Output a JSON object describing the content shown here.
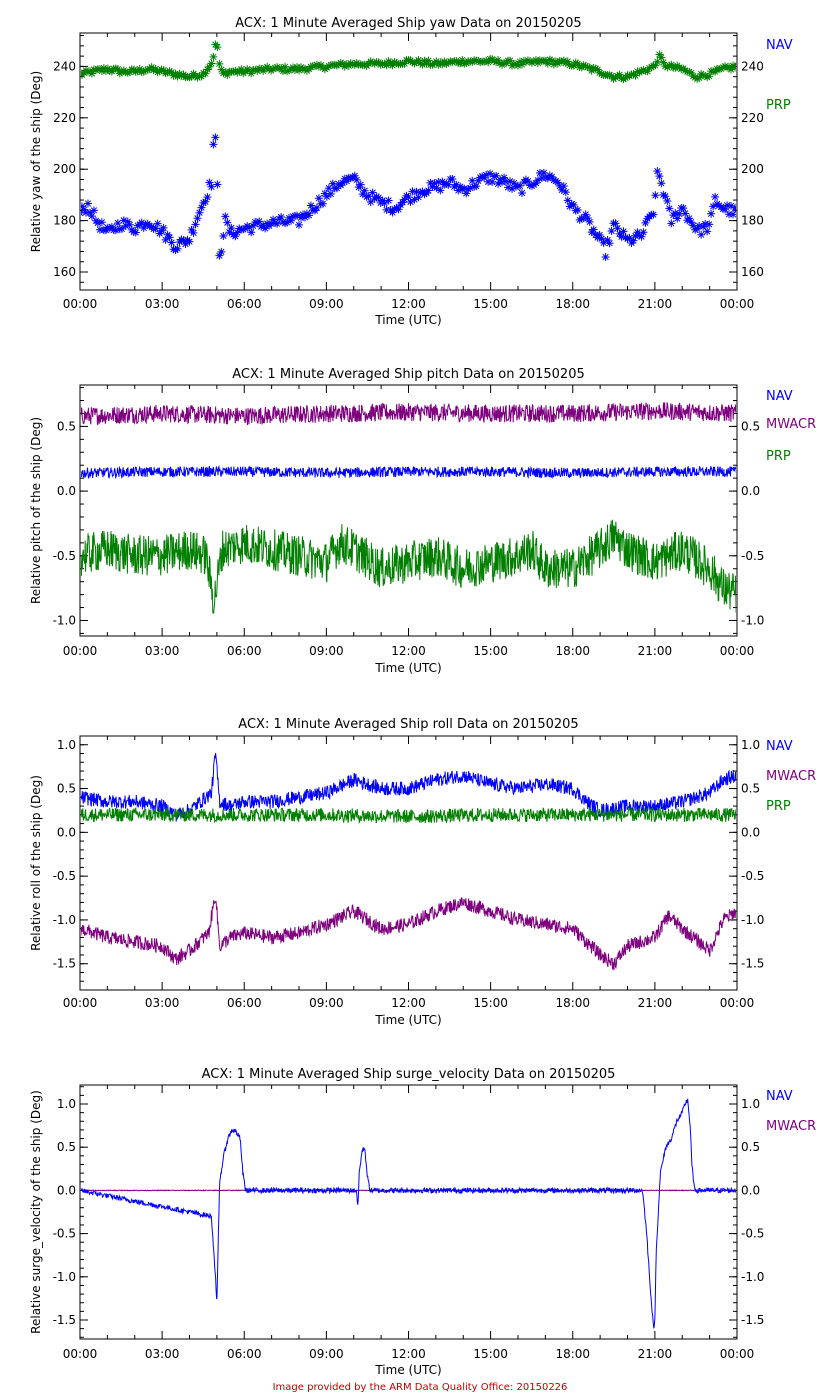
{
  "footer": "Image provided by the ARM Data Quality Office: 20150226",
  "colors": {
    "NAV": "#0000ff",
    "MWACR": "#7f007f",
    "PRP": "#007f00",
    "axis": "#000000"
  },
  "chart_data": [
    {
      "type": "scatter",
      "title": "ACX: 1 Minute Averaged Ship yaw Data on 20150205",
      "xlabel": "Time (UTC)",
      "ylabel": "Relative yaw of the ship (Deg)",
      "xlim": [
        0,
        24
      ],
      "xticks": [
        "00:00",
        "03:00",
        "06:00",
        "09:00",
        "12:00",
        "15:00",
        "18:00",
        "21:00",
        "00:00"
      ],
      "ylim": [
        153,
        253
      ],
      "yticks": [
        160,
        180,
        200,
        220,
        240
      ],
      "legend": [
        "NAV",
        "PRP"
      ],
      "series": [
        {
          "name": "PRP",
          "marker": "asterisk",
          "x": [
            0,
            0.5,
            1,
            1.5,
            2,
            2.5,
            3,
            3.5,
            4,
            4.5,
            4.85,
            4.9,
            5,
            5.05,
            5.1,
            5.2,
            5.5,
            6,
            7,
            8,
            9,
            10,
            11,
            12,
            13,
            14,
            15,
            16,
            17,
            18,
            19,
            19.5,
            20,
            21,
            21.1,
            21.2,
            21.3,
            21.5,
            22,
            22.5,
            23,
            23.5,
            24
          ],
          "y": [
            237,
            238,
            239,
            238,
            238,
            239,
            238,
            237,
            236,
            237,
            242,
            247,
            249,
            245,
            240,
            237,
            238,
            238,
            239,
            239,
            240,
            241,
            241,
            242,
            241,
            242,
            242,
            241,
            242,
            241,
            238,
            236,
            236,
            240,
            243,
            244,
            241,
            240,
            239,
            236,
            237,
            239,
            240
          ]
        },
        {
          "name": "NAV",
          "marker": "asterisk",
          "x": [
            0,
            0.3,
            0.6,
            1,
            1.5,
            2,
            2.5,
            3,
            3.5,
            4,
            4.3,
            4.5,
            4.8,
            4.9,
            4.95,
            5,
            5.05,
            5.1,
            5.3,
            5.5,
            6,
            7,
            8,
            8.5,
            9,
            9.5,
            10,
            10.5,
            11,
            11.5,
            12,
            12.5,
            13,
            13.5,
            14,
            14.5,
            15,
            15.5,
            16,
            16.5,
            17,
            17.5,
            18,
            18.5,
            19,
            19.2,
            19.5,
            20,
            20.5,
            21,
            21.1,
            21.3,
            21.6,
            22,
            22.3,
            22.6,
            23,
            23.2,
            23.5,
            24
          ],
          "y": [
            183,
            186,
            180,
            175,
            179,
            177,
            180,
            176,
            170,
            173,
            182,
            187,
            195,
            215,
            210,
            200,
            180,
            165,
            180,
            175,
            177,
            179,
            180,
            185,
            190,
            195,
            196,
            190,
            187,
            185,
            189,
            192,
            193,
            195,
            192,
            195,
            197,
            195,
            192,
            195,
            198,
            195,
            185,
            180,
            172,
            168,
            178,
            172,
            174,
            185,
            200,
            192,
            180,
            185,
            180,
            176,
            178,
            188,
            185,
            183
          ]
        }
      ]
    },
    {
      "type": "line",
      "title": "ACX: 1 Minute Averaged Ship pitch Data on 20150205",
      "xlabel": "Time (UTC)",
      "ylabel": "Relative pitch of the ship (Deg)",
      "xlim": [
        0,
        24
      ],
      "xticks": [
        "00:00",
        "03:00",
        "06:00",
        "09:00",
        "12:00",
        "15:00",
        "18:00",
        "21:00",
        "00:00"
      ],
      "ylim": [
        -1.12,
        0.82
      ],
      "yticks": [
        -1.0,
        -0.5,
        0.0,
        0.5
      ],
      "legend": [
        "NAV",
        "MWACR",
        "PRP"
      ],
      "series": [
        {
          "name": "MWACR",
          "x": [
            0,
            3,
            6,
            9,
            12,
            15,
            18,
            21,
            24
          ],
          "y": [
            0.58,
            0.6,
            0.58,
            0.6,
            0.61,
            0.6,
            0.6,
            0.62,
            0.6
          ],
          "noise": 0.07
        },
        {
          "name": "NAV",
          "x": [
            0,
            3,
            6,
            9,
            12,
            15,
            18,
            21,
            24
          ],
          "y": [
            0.14,
            0.15,
            0.15,
            0.14,
            0.15,
            0.15,
            0.14,
            0.15,
            0.15
          ],
          "noise": 0.04
        },
        {
          "name": "PRP",
          "x": [
            0,
            1,
            2,
            3,
            4,
            4.6,
            4.9,
            5.2,
            6,
            7,
            8,
            9,
            9.5,
            10,
            11,
            12,
            13,
            14,
            15,
            16,
            16.5,
            17,
            18,
            19,
            19.5,
            20,
            21,
            22,
            23,
            23.5,
            24
          ],
          "y": [
            -0.5,
            -0.45,
            -0.5,
            -0.5,
            -0.45,
            -0.5,
            -0.85,
            -0.45,
            -0.4,
            -0.45,
            -0.5,
            -0.55,
            -0.4,
            -0.45,
            -0.6,
            -0.55,
            -0.5,
            -0.6,
            -0.55,
            -0.5,
            -0.45,
            -0.6,
            -0.6,
            -0.45,
            -0.35,
            -0.45,
            -0.55,
            -0.45,
            -0.6,
            -0.75,
            -0.8
          ],
          "noise": 0.16
        }
      ]
    },
    {
      "type": "line",
      "title": "ACX: 1 Minute Averaged Ship roll Data on 20150205",
      "xlabel": "Time (UTC)",
      "ylabel": "Relative roll of the ship (Deg)",
      "xlim": [
        0,
        24
      ],
      "xticks": [
        "00:00",
        "03:00",
        "06:00",
        "09:00",
        "12:00",
        "15:00",
        "18:00",
        "21:00",
        "00:00"
      ],
      "ylim": [
        -1.8,
        1.1
      ],
      "yticks": [
        -1.5,
        -1.0,
        -0.5,
        0.0,
        0.5,
        1.0
      ],
      "legend": [
        "NAV",
        "MWACR",
        "PRP"
      ],
      "series": [
        {
          "name": "NAV",
          "x": [
            0,
            1,
            2,
            3,
            3.5,
            4,
            4.8,
            4.95,
            5.1,
            5.5,
            6,
            7,
            8,
            9,
            10,
            10.5,
            11,
            12,
            13,
            14,
            15,
            16,
            17,
            18,
            18.5,
            19,
            20,
            21,
            22,
            23,
            23.5,
            24
          ],
          "y": [
            0.4,
            0.35,
            0.35,
            0.3,
            0.2,
            0.25,
            0.45,
            0.9,
            0.35,
            0.3,
            0.35,
            0.35,
            0.4,
            0.45,
            0.6,
            0.55,
            0.5,
            0.5,
            0.6,
            0.65,
            0.55,
            0.5,
            0.55,
            0.5,
            0.35,
            0.25,
            0.3,
            0.3,
            0.35,
            0.45,
            0.6,
            0.65
          ],
          "noise": 0.08
        },
        {
          "name": "PRP",
          "x": [
            0,
            3,
            6,
            9,
            12,
            15,
            18,
            21,
            24
          ],
          "y": [
            0.2,
            0.2,
            0.2,
            0.2,
            0.18,
            0.2,
            0.2,
            0.2,
            0.2
          ],
          "noise": 0.08
        },
        {
          "name": "MWACR",
          "x": [
            0,
            1,
            2,
            3,
            3.5,
            4,
            4.7,
            4.95,
            5.1,
            5.5,
            6,
            7,
            8,
            9,
            10,
            10.5,
            11,
            12,
            13,
            14,
            15,
            16,
            17,
            18,
            19,
            19.5,
            20,
            21,
            21.5,
            22,
            23,
            23.5,
            24
          ],
          "y": [
            -1.1,
            -1.2,
            -1.25,
            -1.3,
            -1.45,
            -1.35,
            -1.15,
            -0.7,
            -1.3,
            -1.2,
            -1.15,
            -1.2,
            -1.15,
            -1.05,
            -0.9,
            -1.0,
            -1.1,
            -1.05,
            -0.9,
            -0.8,
            -0.9,
            -1.0,
            -1.05,
            -1.1,
            -1.4,
            -1.5,
            -1.3,
            -1.2,
            -0.95,
            -1.1,
            -1.35,
            -1.0,
            -0.9
          ],
          "noise": 0.08
        }
      ]
    },
    {
      "type": "line",
      "title": "ACX: 1 Minute Averaged Ship surge_velocity Data on 20150205",
      "xlabel": "Time (UTC)",
      "ylabel": "Relative surge_velocity of the ship (Deg)",
      "xlim": [
        0,
        24
      ],
      "xticks": [
        "00:00",
        "03:00",
        "06:00",
        "09:00",
        "12:00",
        "15:00",
        "18:00",
        "21:00",
        "00:00"
      ],
      "ylim": [
        -1.72,
        1.22
      ],
      "yticks": [
        -1.5,
        -1.0,
        -0.5,
        0.0,
        0.5,
        1.0
      ],
      "legend": [
        "NAV",
        "MWACR"
      ],
      "series": [
        {
          "name": "MWACR",
          "x": [
            0,
            24
          ],
          "y": [
            0,
            0
          ],
          "noise": 0.004
        },
        {
          "name": "NAV",
          "x": [
            0,
            4.8,
            4.95,
            5.0,
            5.05,
            5.1,
            5.25,
            5.4,
            5.55,
            5.7,
            5.85,
            5.95,
            6.05,
            10.1,
            10.15,
            10.2,
            10.3,
            10.4,
            10.5,
            10.6,
            20.55,
            20.7,
            20.85,
            20.95,
            21.0,
            21.05,
            21.2,
            21.4,
            21.6,
            21.8,
            22.0,
            22.1,
            22.2,
            22.3,
            22.35,
            22.45,
            24
          ],
          "y": [
            0,
            -0.3,
            -1.0,
            -1.35,
            -0.6,
            0.1,
            0.4,
            0.6,
            0.7,
            0.68,
            0.6,
            0.2,
            0,
            0,
            -0.2,
            0.2,
            0.45,
            0.5,
            0.15,
            0,
            0,
            -0.5,
            -1.2,
            -1.6,
            -1.5,
            -0.7,
            0.2,
            0.5,
            0.6,
            0.8,
            0.9,
            1.0,
            1.05,
            0.7,
            0.3,
            0,
            0
          ],
          "noise": 0.03
        }
      ]
    }
  ]
}
